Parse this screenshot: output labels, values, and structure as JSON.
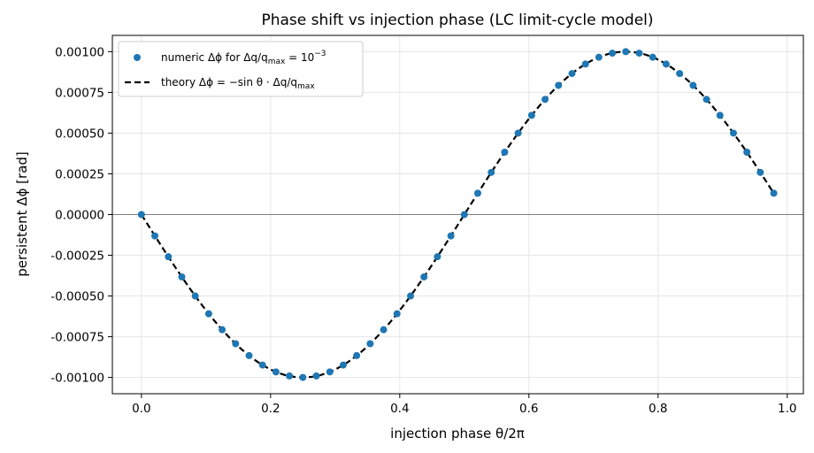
{
  "chart_data": {
    "type": "scatter",
    "title": "Phase shift vs injection phase (LC limit-cycle model)",
    "xlabel": "injection phase θ/2π",
    "ylabel": "persistent Δϕ [rad]",
    "xlim": [
      -0.045,
      1.025
    ],
    "ylim": [
      -0.0011,
      0.0011
    ],
    "x_ticks": [
      0.0,
      0.2,
      0.4,
      0.6,
      0.8,
      1.0
    ],
    "x_tick_labels": [
      "0.0",
      "0.2",
      "0.4",
      "0.6",
      "0.8",
      "1.0"
    ],
    "y_ticks": [
      -0.001,
      -0.00075,
      -0.0005,
      -0.00025,
      0.0,
      0.00025,
      0.0005,
      0.00075,
      0.001
    ],
    "y_tick_labels": [
      "-0.00100",
      "-0.00075",
      "-0.00050",
      "-0.00025",
      "0.00000",
      "0.00025",
      "0.00050",
      "0.00075",
      "0.00100"
    ],
    "grid": true,
    "zero_line": true,
    "legend_position": "top-left",
    "series": [
      {
        "name": "numeric Δϕ for Δq/q_max = 10^-3",
        "kind": "scatter",
        "color": "#1f77b4",
        "x": [
          0.0,
          0.0208,
          0.0417,
          0.0625,
          0.0833,
          0.1042,
          0.125,
          0.1458,
          0.1667,
          0.1875,
          0.2083,
          0.2292,
          0.25,
          0.2708,
          0.2917,
          0.3125,
          0.3333,
          0.3542,
          0.375,
          0.3958,
          0.4167,
          0.4375,
          0.4583,
          0.4792,
          0.5,
          0.5208,
          0.5417,
          0.5625,
          0.5833,
          0.6042,
          0.625,
          0.6458,
          0.6667,
          0.6875,
          0.7083,
          0.7292,
          0.75,
          0.7708,
          0.7917,
          0.8125,
          0.8333,
          0.8542,
          0.875,
          0.8958,
          0.9167,
          0.9375,
          0.9583,
          0.9792
        ],
        "y": [
          0.0,
          -0.000131,
          -0.000259,
          -0.000383,
          -0.0005,
          -0.000609,
          -0.000707,
          -0.000793,
          -0.000866,
          -0.000924,
          -0.000966,
          -0.000991,
          -0.001,
          -0.000991,
          -0.000966,
          -0.000924,
          -0.000866,
          -0.000793,
          -0.000707,
          -0.000609,
          -0.0005,
          -0.000383,
          -0.000259,
          -0.000131,
          0.0,
          0.000131,
          0.000259,
          0.000383,
          0.0005,
          0.000609,
          0.000707,
          0.000793,
          0.000866,
          0.000924,
          0.000966,
          0.000991,
          0.001,
          0.000991,
          0.000966,
          0.000924,
          0.000866,
          0.000793,
          0.000707,
          0.000609,
          0.0005,
          0.000383,
          0.000259,
          0.000131
        ]
      },
      {
        "name": "theory Δϕ = −sin θ · Δq/q_max",
        "kind": "line",
        "style": "dashed",
        "color": "#000000",
        "function": "-0.001*sin(2*pi*x)",
        "x_range": [
          0.0,
          0.9792
        ]
      }
    ],
    "legend": {
      "scatter_prefix": "numeric Δϕ for Δq/q",
      "scatter_sub": "max",
      "scatter_suffix": " = 10",
      "scatter_sup": "−3",
      "line_prefix": "theory Δϕ = −sin θ · Δq/q",
      "line_sub": "max"
    }
  }
}
